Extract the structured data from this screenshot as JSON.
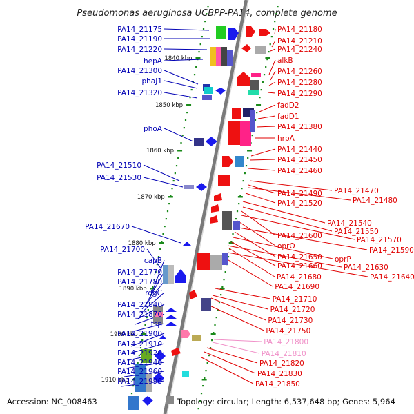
{
  "title": "Pseudomonas aeruginosa UCBPP-PA14, complete genome",
  "footer": {
    "accession": "Accession: NC_008463",
    "topology": "Topology: circular; Length: 6,537,648 bp; Genes: 5,964"
  },
  "colors": {
    "left_label": "#0000b4",
    "right_label": "#e00000",
    "pink_label": "#f090c8",
    "backbone": "#7a7a7a",
    "tick": "#1a8a1a"
  },
  "kbp_markers": [
    "1840 kbp",
    "1850 kbp",
    "1860 kbp",
    "1870 kbp",
    "1880 kbp",
    "1890 kbp",
    "1900 kbp",
    "1910 kbp"
  ],
  "left_genes": [
    "PA14_21175",
    "PA14_21190",
    "PA14_21220",
    "hepA",
    "PA14_21300",
    "phaJ1",
    "PA14_21320",
    "phoA",
    "PA14_21510",
    "PA14_21530",
    "PA14_21670",
    "PA14_21700",
    "capB",
    "PA14_21770",
    "PA14_21780",
    "rdgC",
    "PA14_21840",
    "PA14_21870",
    "tsp",
    "PA14_21900",
    "PA14_21910",
    "PA14_21920",
    "PA14_21940",
    "PA14_21960",
    "PA14_21990"
  ],
  "right_genes": [
    "PA14_21180",
    "PA14_21210",
    "PA14_21240",
    "alkB",
    "PA14_21260",
    "PA14_21280",
    "PA14_21290",
    "fadD2",
    "fadD1",
    "PA14_21380",
    "hrpA",
    "PA14_21440",
    "PA14_21450",
    "PA14_21460",
    "PA14_21470",
    "PA14_21490",
    "PA14_21480",
    "PA14_21520",
    "PA14_21540",
    "PA14_21550",
    "PA14_21600",
    "PA14_21570",
    "oprO",
    "PA14_21590",
    "PA14_21650",
    "oprP",
    "PA14_21660",
    "PA14_21630",
    "PA14_21680",
    "PA14_21640",
    "PA14_21690",
    "PA14_21710",
    "PA14_21720",
    "PA14_21730",
    "PA14_21750",
    "PA14_21800",
    "PA14_21810",
    "PA14_21820",
    "PA14_21830",
    "PA14_21850"
  ],
  "pink_genes": [
    "PA14_21800",
    "PA14_21810"
  ]
}
